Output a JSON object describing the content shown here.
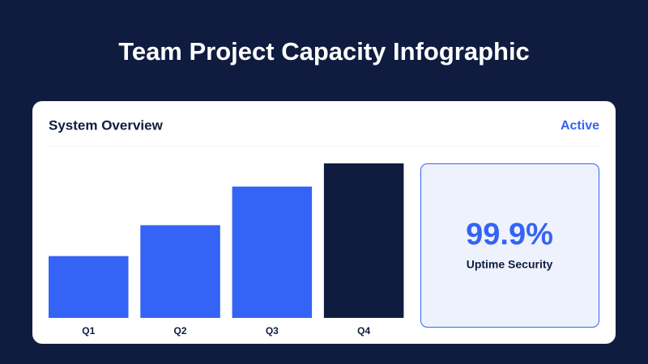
{
  "title": "Team Project Capacity Infographic",
  "chart_data": {
    "type": "bar",
    "title": "System Overview",
    "status": "Active",
    "categories": [
      "Q1",
      "Q2",
      "Q3",
      "Q4"
    ],
    "values": [
      40,
      60,
      85,
      100
    ],
    "colors": [
      "#3563f5",
      "#3563f5",
      "#3563f5",
      "#0f1c3f"
    ],
    "ylim": [
      0,
      100
    ]
  },
  "stat": {
    "value": "99.9%",
    "caption": "Uptime Security"
  }
}
